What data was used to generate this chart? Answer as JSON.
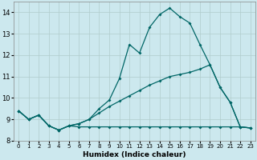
{
  "xlabel": "Humidex (Indice chaleur)",
  "xlim": [
    -0.5,
    23.5
  ],
  "ylim": [
    8.0,
    14.5
  ],
  "yticks": [
    8,
    9,
    10,
    11,
    12,
    13,
    14
  ],
  "xticks": [
    0,
    1,
    2,
    3,
    4,
    5,
    6,
    7,
    8,
    9,
    10,
    11,
    12,
    13,
    14,
    15,
    16,
    17,
    18,
    19,
    20,
    21,
    22,
    23
  ],
  "background_color": "#cce8ee",
  "grid_color": "#b0cccc",
  "line_color": "#006666",
  "line1_x": [
    0,
    1,
    2,
    3,
    4,
    5,
    6,
    7,
    8,
    9,
    10,
    11,
    12,
    13,
    14,
    15,
    16,
    17,
    18,
    19,
    20,
    21,
    22,
    23
  ],
  "line1_y": [
    9.4,
    9.0,
    9.2,
    8.7,
    8.5,
    8.7,
    8.8,
    9.0,
    9.5,
    9.9,
    10.9,
    12.5,
    12.1,
    13.3,
    13.9,
    14.2,
    13.8,
    13.5,
    12.5,
    11.55,
    10.5,
    9.8,
    8.65,
    8.6
  ],
  "line2_x": [
    0,
    1,
    2,
    3,
    4,
    5,
    6,
    7,
    8,
    9,
    10,
    11,
    12,
    13,
    14,
    15,
    16,
    17,
    18,
    19,
    20,
    21,
    22,
    23
  ],
  "line2_y": [
    9.4,
    9.0,
    9.2,
    8.7,
    8.5,
    8.7,
    8.65,
    8.65,
    8.65,
    8.65,
    8.65,
    8.65,
    8.65,
    8.65,
    8.65,
    8.65,
    8.65,
    8.65,
    8.65,
    8.65,
    8.65,
    8.65,
    8.65,
    8.6
  ],
  "line3_x": [
    0,
    1,
    2,
    3,
    4,
    5,
    6,
    7,
    8,
    9,
    10,
    11,
    12,
    13,
    14,
    15,
    16,
    17,
    18,
    19,
    20,
    21,
    22,
    23
  ],
  "line3_y": [
    9.4,
    9.0,
    9.2,
    8.7,
    8.5,
    8.7,
    8.8,
    9.0,
    9.3,
    9.6,
    9.85,
    10.1,
    10.35,
    10.6,
    10.8,
    11.0,
    11.1,
    11.2,
    11.35,
    11.55,
    10.5,
    9.8,
    8.65,
    8.6
  ]
}
